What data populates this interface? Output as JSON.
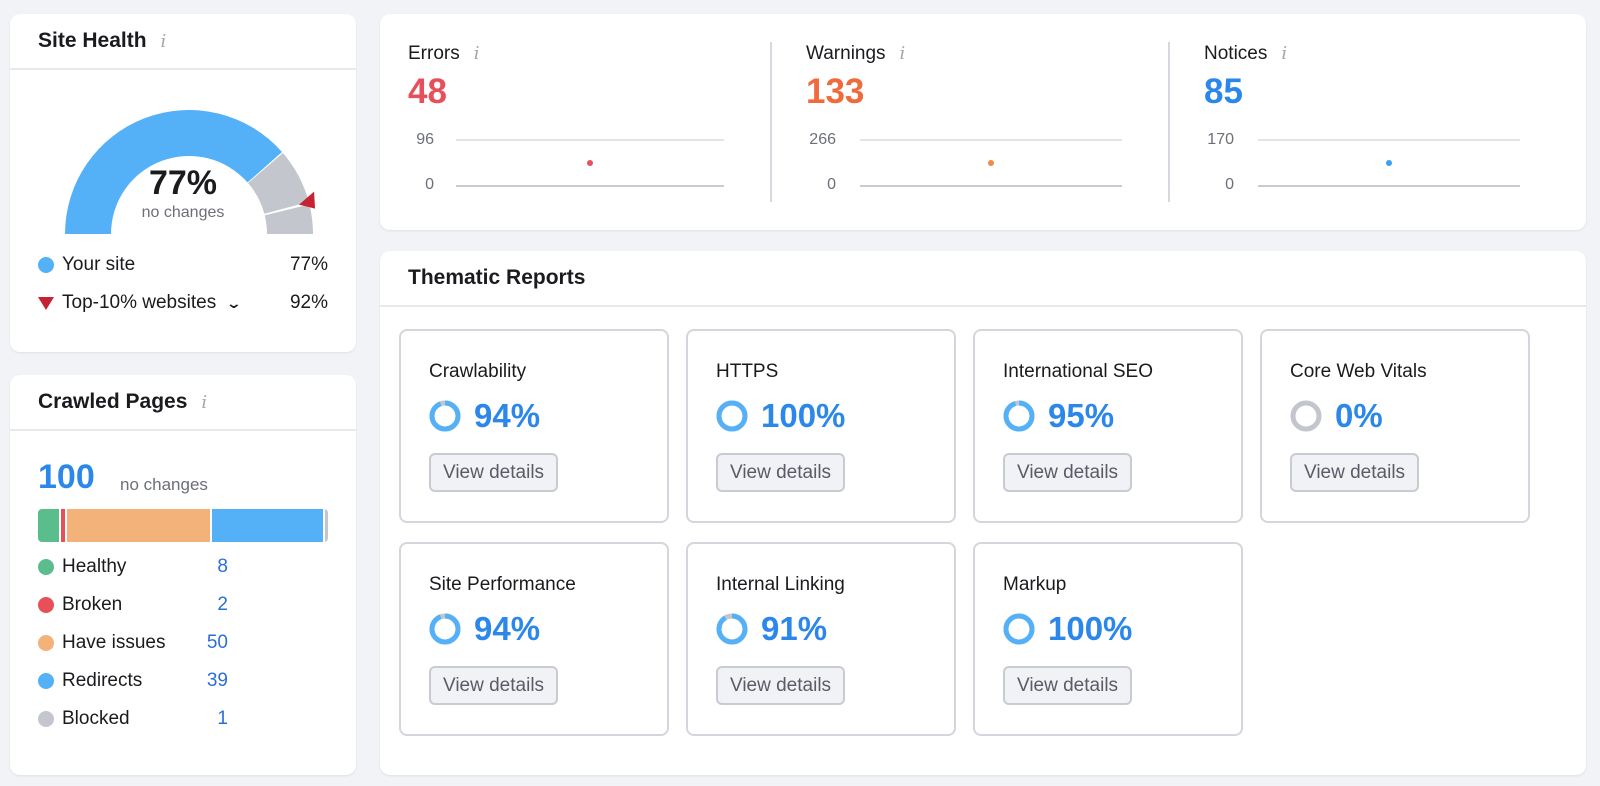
{
  "site_health": {
    "title": "Site Health",
    "info_icon": "i",
    "score": "77%",
    "score_sub": "no changes",
    "gauge": {
      "your_site_pct": 77,
      "top10_pct": 92
    },
    "legend": [
      {
        "label": "Your site",
        "value": "77%",
        "color": "#55b1f7",
        "marker": "dot"
      },
      {
        "label": "Top-10% websites",
        "value": "92%",
        "color": "#c62233",
        "marker": "triangle",
        "has_dropdown": true
      }
    ],
    "colors": {
      "filled": "#55b1f7",
      "empty": "#c4c6cd",
      "marker": "#c62233"
    }
  },
  "crawled_pages": {
    "title": "Crawled Pages",
    "info_icon": "i",
    "total": "100",
    "total_sub": "no changes",
    "items": [
      {
        "label": "Healthy",
        "value": "8",
        "color": "#59bd8c"
      },
      {
        "label": "Broken",
        "value": "2",
        "color": "#e7505a"
      },
      {
        "label": "Have issues",
        "value": "50",
        "color": "#f3b279"
      },
      {
        "label": "Redirects",
        "value": "39",
        "color": "#55b1f7"
      },
      {
        "label": "Blocked",
        "value": "1",
        "color": "#c4c6cd"
      }
    ]
  },
  "issues": [
    {
      "label": "Errors",
      "value": "48",
      "color": "#e7505a",
      "axis_max": "96",
      "axis_min": "0",
      "dot_color": "#e7505a"
    },
    {
      "label": "Warnings",
      "value": "133",
      "color": "#ef6b3b",
      "axis_max": "266",
      "axis_min": "0",
      "dot_color": "#f08a44"
    },
    {
      "label": "Notices",
      "value": "85",
      "color": "#2b87ea",
      "axis_max": "170",
      "axis_min": "0",
      "dot_color": "#3aa0f5"
    }
  ],
  "thematic_reports": {
    "title": "Thematic Reports",
    "button_label": "View details",
    "reports": [
      {
        "name": "Crawlability",
        "score": "94%",
        "pct": 94
      },
      {
        "name": "HTTPS",
        "score": "100%",
        "pct": 100
      },
      {
        "name": "International SEO",
        "score": "95%",
        "pct": 95
      },
      {
        "name": "Core Web Vitals",
        "score": "0%",
        "pct": 0
      },
      {
        "name": "Site Performance",
        "score": "94%",
        "pct": 94
      },
      {
        "name": "Internal Linking",
        "score": "91%",
        "pct": 91
      },
      {
        "name": "Markup",
        "score": "100%",
        "pct": 100
      }
    ]
  },
  "chart_data": [
    {
      "type": "scatter",
      "title": "Errors",
      "x": [
        1
      ],
      "values": [
        48
      ],
      "ylim": [
        0,
        96
      ],
      "yticks": [
        "0",
        "96"
      ]
    },
    {
      "type": "scatter",
      "title": "Warnings",
      "x": [
        1
      ],
      "values": [
        133
      ],
      "ylim": [
        0,
        266
      ],
      "yticks": [
        "0",
        "266"
      ]
    },
    {
      "type": "scatter",
      "title": "Notices",
      "x": [
        1
      ],
      "values": [
        85
      ],
      "ylim": [
        0,
        170
      ],
      "yticks": [
        "0",
        "170"
      ]
    },
    {
      "type": "bar",
      "title": "Crawled Pages",
      "categories": [
        "Healthy",
        "Broken",
        "Have issues",
        "Redirects",
        "Blocked"
      ],
      "values": [
        8,
        2,
        50,
        39,
        1
      ]
    }
  ]
}
